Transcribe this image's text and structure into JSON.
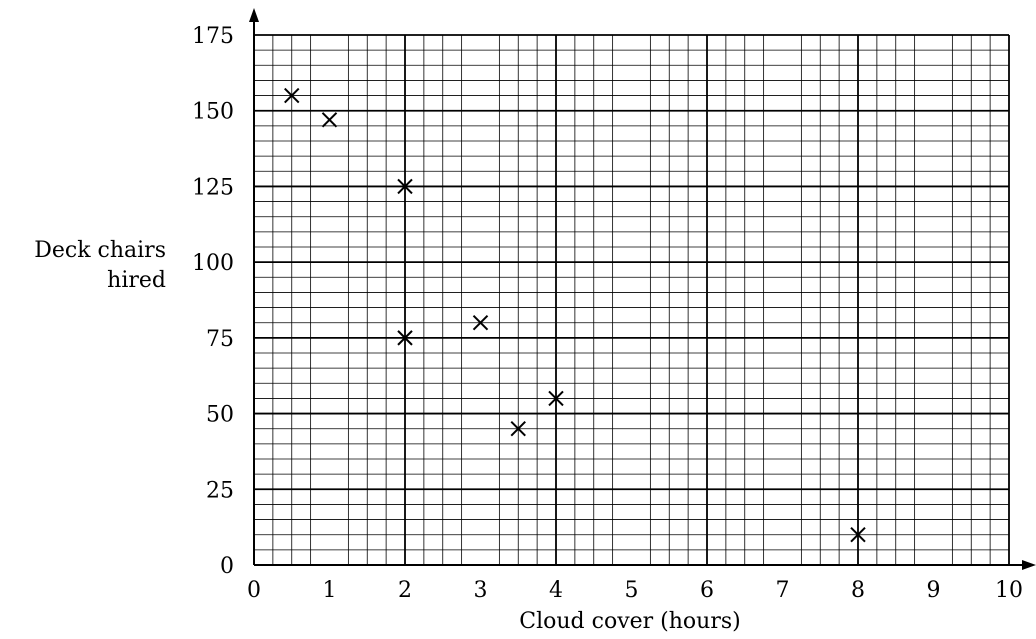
{
  "chart_data": {
    "type": "scatter",
    "title": "",
    "xlabel": "Cloud cover (hours)",
    "ylabel": [
      "Deck chairs",
      "hired"
    ],
    "xlim": [
      0,
      10
    ],
    "ylim": [
      0,
      175
    ],
    "x_ticks": [
      0,
      1,
      2,
      3,
      4,
      5,
      6,
      7,
      8,
      9,
      10
    ],
    "y_ticks": [
      0,
      25,
      50,
      75,
      100,
      125,
      150,
      175
    ],
    "grid": true,
    "marker": "x",
    "series": [
      {
        "points": [
          {
            "x": 0.5,
            "y": 155
          },
          {
            "x": 1,
            "y": 147
          },
          {
            "x": 2,
            "y": 125
          },
          {
            "x": 2,
            "y": 75
          },
          {
            "x": 3,
            "y": 80
          },
          {
            "x": 3.5,
            "y": 45
          },
          {
            "x": 4,
            "y": 55
          },
          {
            "x": 8,
            "y": 10
          }
        ]
      }
    ]
  }
}
